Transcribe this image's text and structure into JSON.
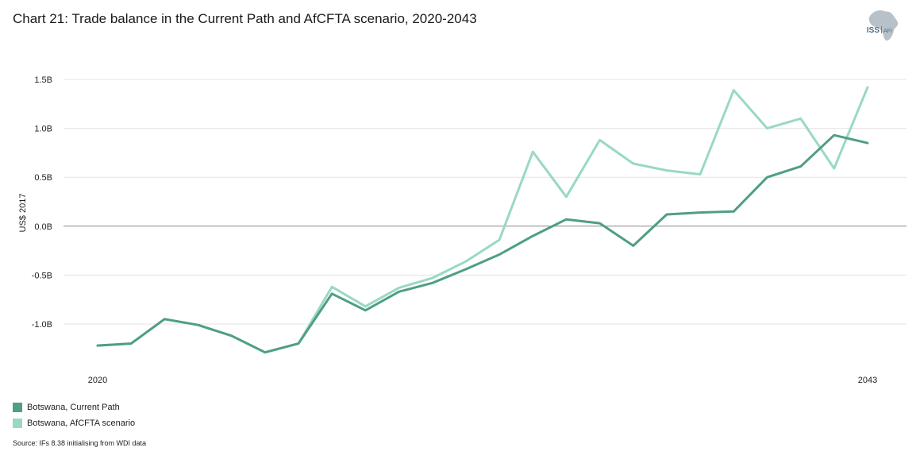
{
  "title": "Chart 21: Trade balance in the Current Path and AfCFTA scenario, 2020-2043",
  "logo": {
    "text_left": "ISS",
    "text_right": "AFI",
    "icon": "africa-map-icon",
    "map_color": "#b9c1c8",
    "text_color": "#4a6f8a"
  },
  "source": "Source: IFs 8.38 initialising from WDI data",
  "chart_data": {
    "type": "line",
    "title": "Chart 21: Trade balance in the Current Path and AfCFTA scenario, 2020-2043",
    "xlabel": "",
    "ylabel": "US$ 2017",
    "x": [
      2020,
      2021,
      2022,
      2023,
      2024,
      2025,
      2026,
      2027,
      2028,
      2029,
      2030,
      2031,
      2032,
      2033,
      2034,
      2035,
      2036,
      2037,
      2038,
      2039,
      2040,
      2041,
      2042,
      2043
    ],
    "x_tick_labels": [
      "2020",
      "2043"
    ],
    "y_ticks": [
      -1.0,
      -0.5,
      0.0,
      0.5,
      1.0,
      1.5
    ],
    "y_tick_labels": [
      "-1.0B",
      "-0.5B",
      "0.0B",
      "0.5B",
      "1.0B",
      "1.5B"
    ],
    "ylim": [
      -1.5,
      1.5
    ],
    "grid": true,
    "legend_position": "bottom-left",
    "series": [
      {
        "name": "Botswana, Current Path",
        "color": "#4f9e85",
        "values": [
          -1.22,
          -1.2,
          -0.95,
          -1.01,
          -1.12,
          -1.29,
          -1.2,
          -0.69,
          -0.86,
          -0.67,
          -0.58,
          -0.44,
          -0.29,
          -0.1,
          0.07,
          0.03,
          -0.2,
          0.12,
          0.14,
          0.15,
          0.5,
          0.61,
          0.93,
          0.85
        ]
      },
      {
        "name": "Botswana, AfCFTA scenario",
        "color": "#99d9c3",
        "values": [
          -1.22,
          -1.2,
          -0.95,
          -1.01,
          -1.12,
          -1.29,
          -1.2,
          -0.62,
          -0.82,
          -0.63,
          -0.53,
          -0.36,
          -0.14,
          0.76,
          0.3,
          0.88,
          0.64,
          0.57,
          0.53,
          1.39,
          1.0,
          1.1,
          0.59,
          1.42
        ]
      }
    ]
  }
}
